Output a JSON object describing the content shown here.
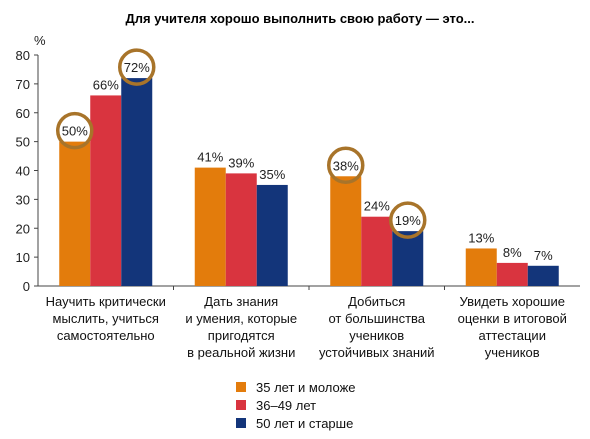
{
  "chart_data": {
    "type": "bar",
    "title": "Для учителя хорошо выполнить свою работу — это...",
    "ylabel": "%",
    "ylim": [
      0,
      80
    ],
    "yticks": [
      0,
      10,
      20,
      30,
      40,
      50,
      60,
      70,
      80
    ],
    "grid": false,
    "legend_position": "bottom",
    "categories": [
      [
        "Научить критически",
        "мыслить, учиться",
        "самостоятельно"
      ],
      [
        "Дать знания",
        "и умения, которые",
        "пригодятся",
        "в реальной жизни"
      ],
      [
        "Добиться",
        "от большинства",
        "учеников",
        "устойчивых знаний"
      ],
      [
        "Увидеть хорошие",
        "оценки в итоговой",
        "аттестации",
        "учеников"
      ]
    ],
    "series": [
      {
        "name": "35 лет и моложе",
        "color": "#e37c0c",
        "values": [
          50,
          41,
          38,
          13
        ],
        "labels": [
          "50%",
          "41%",
          "38%",
          "13%"
        ]
      },
      {
        "name": "36–49 лет",
        "color": "#d9343f",
        "values": [
          66,
          39,
          24,
          8
        ],
        "labels": [
          "66%",
          "39%",
          "24%",
          "8%"
        ]
      },
      {
        "name": "50 лет и старше",
        "color": "#13357a",
        "values": [
          72,
          35,
          19,
          7
        ],
        "labels": [
          "72%",
          "35%",
          "19%",
          "7%"
        ]
      }
    ],
    "circled": [
      [
        0,
        0
      ],
      [
        0,
        2
      ],
      [
        2,
        0
      ],
      [
        2,
        2
      ]
    ],
    "highlight_color": "#a8742a"
  }
}
